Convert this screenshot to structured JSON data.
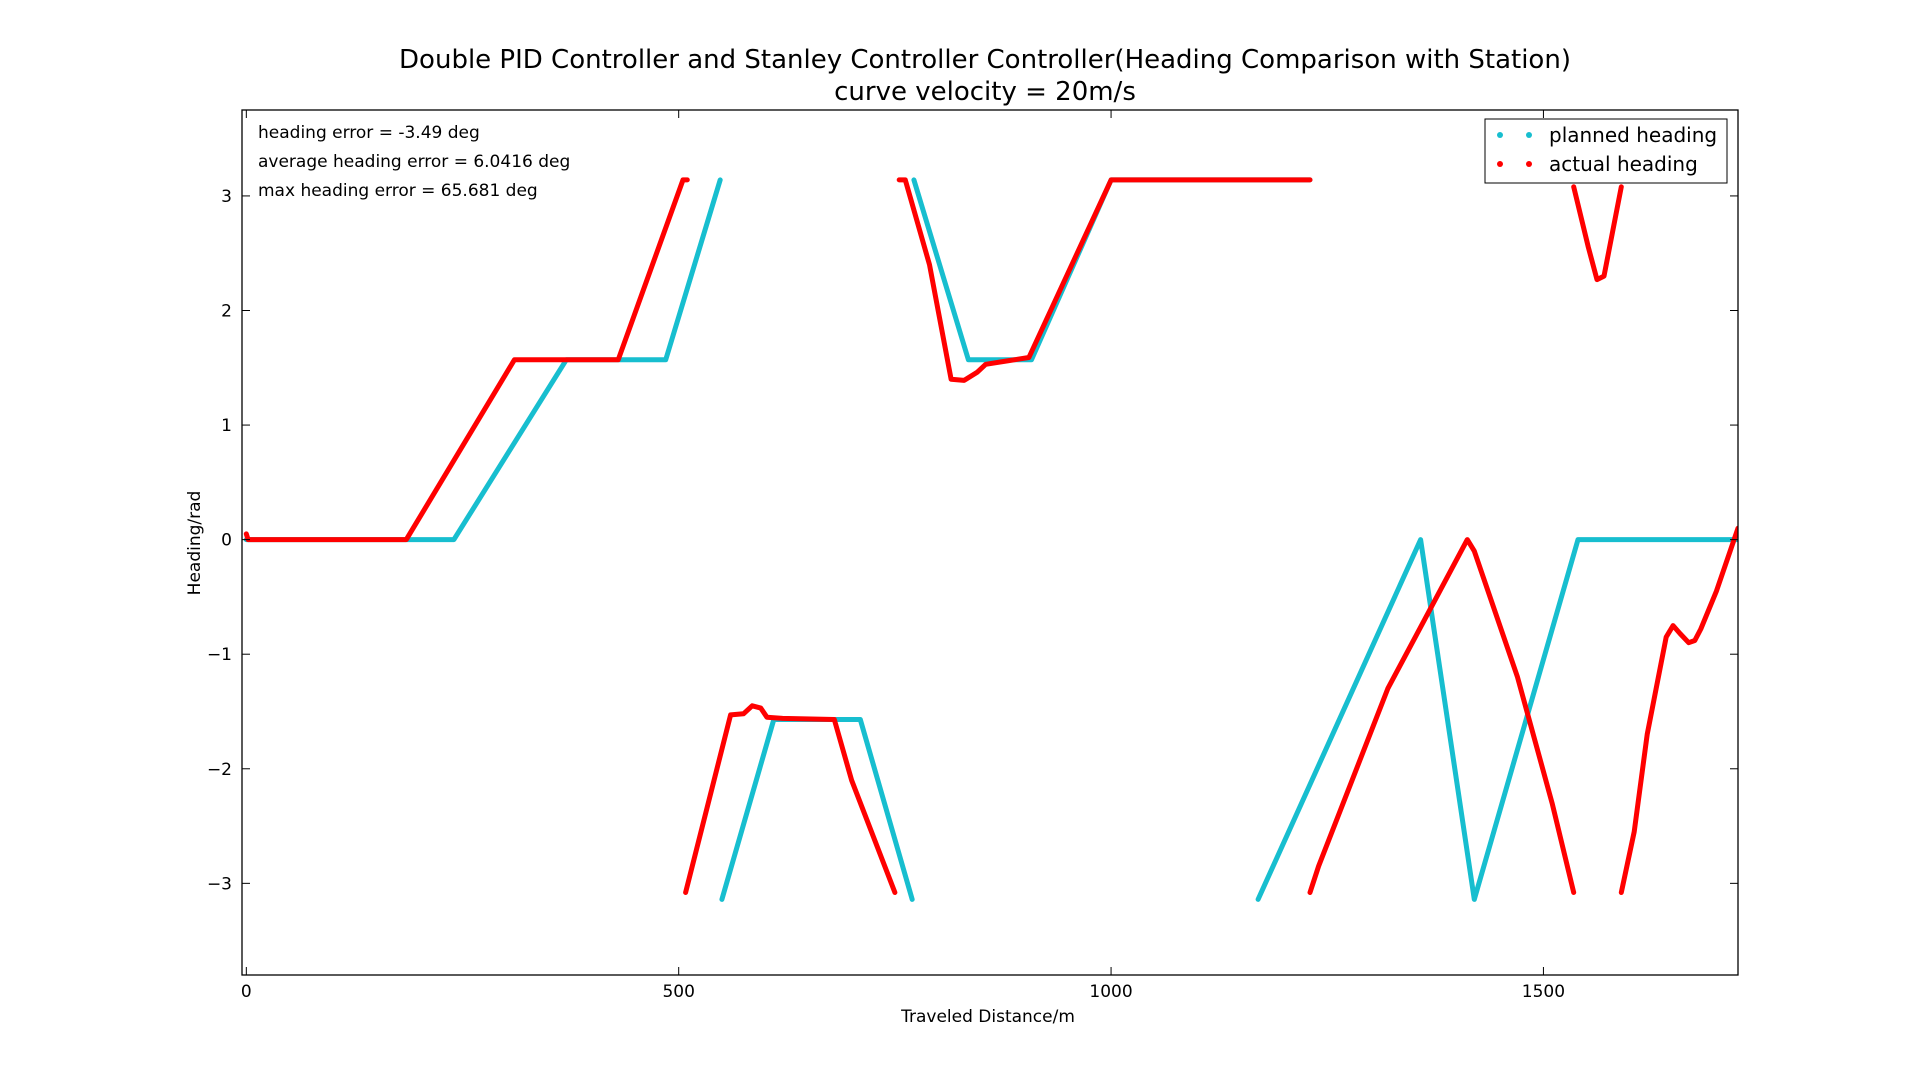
{
  "chart_data": {
    "type": "scatter",
    "title": "Double PID Controller and Stanley Controller Controller(Heading Comparison with Station)",
    "subtitle": "curve velocity = 20m/s",
    "xlabel": "Traveled Distance/m",
    "ylabel": "Heading/rad",
    "xlim": [
      -5,
      1725
    ],
    "ylim": [
      -3.8,
      3.75
    ],
    "xticks": [
      0,
      500,
      1000,
      1500
    ],
    "yticks": [
      -3,
      -2,
      -1,
      0,
      1,
      2,
      3
    ],
    "xtick_labels": [
      "0",
      "500",
      "1000",
      "1500"
    ],
    "ytick_labels": [
      "−3",
      "−2",
      "−1",
      "0",
      "1",
      "2",
      "3"
    ],
    "grid": false,
    "legend_position": "top-right",
    "annotations": [
      "heading error = -3.49 deg",
      "average heading error = 6.0416 deg",
      "max heading error = 65.681 deg"
    ],
    "series": [
      {
        "name": "planned heading",
        "color": "#17becf",
        "segments": [
          [
            [
              0,
              0
            ],
            [
              240,
              0
            ],
            [
              370,
              1.57
            ],
            [
              485,
              1.57
            ],
            [
              548,
              3.14
            ]
          ],
          [
            [
              550,
              -3.14
            ],
            [
              610,
              -1.57
            ],
            [
              710,
              -1.57
            ],
            [
              770,
              -3.14
            ]
          ],
          [
            [
              772,
              3.14
            ],
            [
              835,
              1.57
            ],
            [
              908,
              1.57
            ],
            [
              1000,
              3.14
            ],
            [
              1230,
              3.14
            ]
          ],
          [
            [
              1170,
              -3.14
            ],
            [
              1358,
              0
            ],
            [
              1420,
              -3.14
            ],
            [
              1540,
              0
            ],
            [
              1725,
              0
            ]
          ]
        ]
      },
      {
        "name": "actual heading",
        "color": "#ff0000",
        "segments": [
          [
            [
              0,
              0.05
            ],
            [
              2,
              0
            ],
            [
              185,
              0
            ],
            [
              310,
              1.57
            ],
            [
              430,
              1.57
            ],
            [
              505,
              3.14
            ],
            [
              510,
              3.14
            ]
          ],
          [
            [
              508,
              -3.08
            ],
            [
              560,
              -1.53
            ],
            [
              575,
              -1.52
            ],
            [
              585,
              -1.45
            ],
            [
              595,
              -1.47
            ],
            [
              602,
              -1.55
            ],
            [
              620,
              -1.56
            ],
            [
              680,
              -1.57
            ],
            [
              700,
              -2.1
            ],
            [
              750,
              -3.08
            ]
          ],
          [
            [
              755,
              3.14
            ],
            [
              762,
              3.14
            ],
            [
              790,
              2.4
            ],
            [
              815,
              1.4
            ],
            [
              830,
              1.39
            ],
            [
              845,
              1.46
            ],
            [
              855,
              1.53
            ],
            [
              880,
              1.56
            ],
            [
              905,
              1.59
            ],
            [
              1000,
              3.14
            ],
            [
              1230,
              3.14
            ]
          ],
          [
            [
              1230,
              -3.08
            ],
            [
              1240,
              -2.85
            ],
            [
              1320,
              -1.3
            ],
            [
              1412,
              0
            ],
            [
              1420,
              -0.1
            ],
            [
              1470,
              -1.2
            ],
            [
              1510,
              -2.3
            ],
            [
              1535,
              -3.08
            ]
          ],
          [
            [
              1535,
              3.08
            ],
            [
              1552,
              2.55
            ],
            [
              1562,
              2.27
            ],
            [
              1570,
              2.3
            ],
            [
              1590,
              3.08
            ]
          ],
          [
            [
              1590,
              -3.08
            ],
            [
              1605,
              -2.55
            ],
            [
              1620,
              -1.7
            ],
            [
              1642,
              -0.85
            ],
            [
              1650,
              -0.75
            ],
            [
              1658,
              -0.82
            ],
            [
              1668,
              -0.9
            ],
            [
              1675,
              -0.88
            ],
            [
              1682,
              -0.78
            ],
            [
              1700,
              -0.45
            ],
            [
              1725,
              0.1
            ]
          ]
        ]
      }
    ]
  }
}
